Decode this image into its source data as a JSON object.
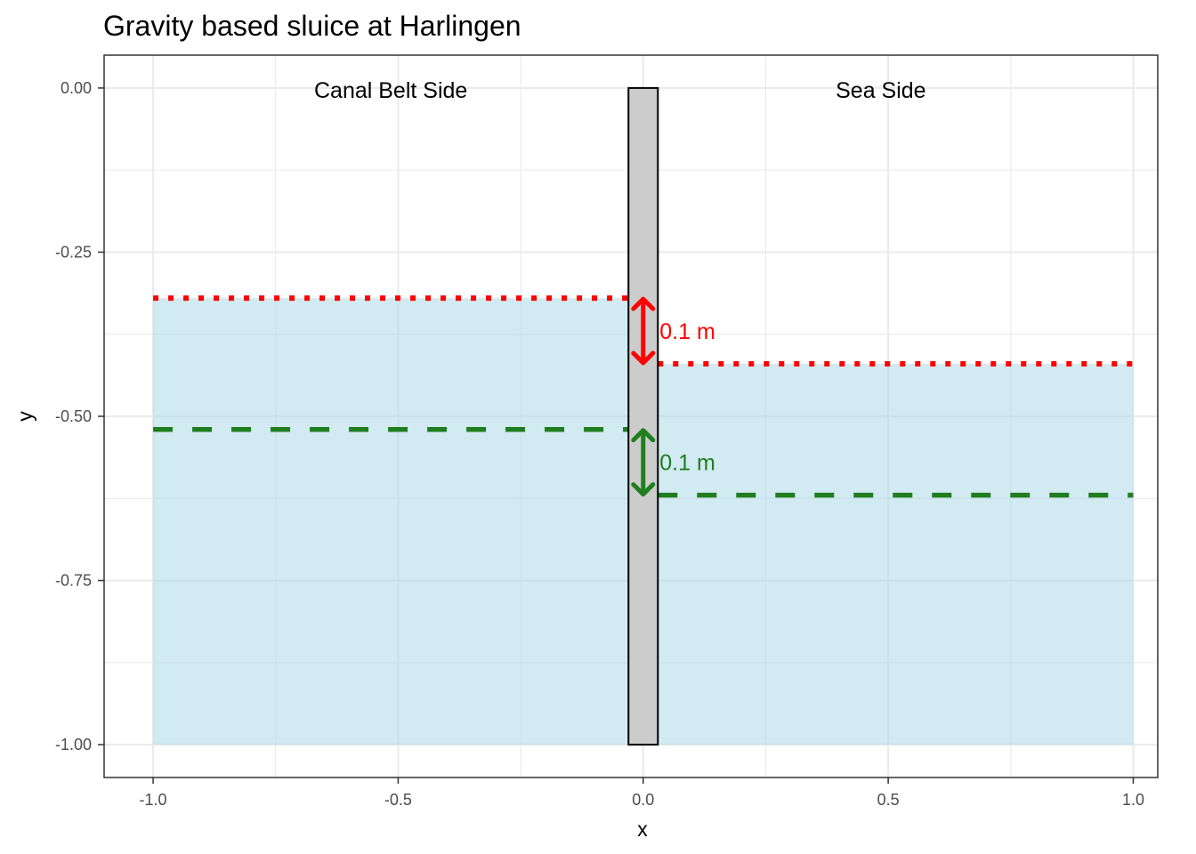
{
  "chart_data": {
    "type": "area",
    "title": "Gravity based sluice at Harlingen",
    "xlabel": "x",
    "ylabel": "y",
    "xlim": [
      -1.1,
      1.05
    ],
    "ylim": [
      -1.05,
      0.05
    ],
    "x_ticks": [
      -1.0,
      -0.5,
      0.0,
      0.5,
      1.0
    ],
    "x_tick_labels": [
      "-1.0",
      "-0.5",
      "0.0",
      "0.5",
      "1.0"
    ],
    "y_ticks": [
      0.0,
      -0.25,
      -0.5,
      -0.75,
      -1.0
    ],
    "y_tick_labels": [
      "0.00",
      "-0.25",
      "-0.50",
      "-0.75",
      "-1.00"
    ],
    "grid": true,
    "water_bodies": [
      {
        "x_range": [
          -1.0,
          -0.03
        ],
        "top": -0.32,
        "bottom": -1.0
      },
      {
        "x_range": [
          0.03,
          1.0
        ],
        "top": -0.42,
        "bottom": -1.0
      }
    ],
    "sluice_gate": {
      "x_range": [
        -0.03,
        0.03
      ],
      "y_range": [
        -1.0,
        0.0
      ]
    },
    "level_lines": [
      {
        "style": "dotted",
        "x_range": [
          -1.0,
          -0.03
        ],
        "y": -0.32,
        "color": "#ff0000"
      },
      {
        "style": "dotted",
        "x_range": [
          0.03,
          1.0
        ],
        "y": -0.42,
        "color": "#ff0000"
      },
      {
        "style": "dashed",
        "x_range": [
          -1.0,
          -0.03
        ],
        "y": -0.52,
        "color": "#1f7f1f"
      },
      {
        "style": "dashed",
        "x_range": [
          0.03,
          1.0
        ],
        "y": -0.62,
        "color": "#1f7f1f"
      }
    ],
    "difference_arrows": [
      {
        "x": 0.0,
        "y_from": -0.32,
        "y_to": -0.42,
        "color": "#ff0000",
        "label": "0.1 m",
        "label_x": 0.03,
        "label_y": -0.37
      },
      {
        "x": 0.0,
        "y_from": -0.52,
        "y_to": -0.62,
        "color": "#1f7f1f",
        "label": "0.1 m",
        "label_x": 0.03,
        "label_y": -0.57
      }
    ],
    "annotations": [
      {
        "text": "Canal Belt Side",
        "x": -0.515,
        "y": 0.0
      },
      {
        "text": "Sea Side",
        "x": 0.485,
        "y": 0.0
      }
    ],
    "colors": {
      "water": "#add8e6",
      "gate_fill": "#cccccc",
      "gate_stroke": "#000000",
      "grid": "#ebebeb",
      "panel_border": "#333333"
    }
  }
}
